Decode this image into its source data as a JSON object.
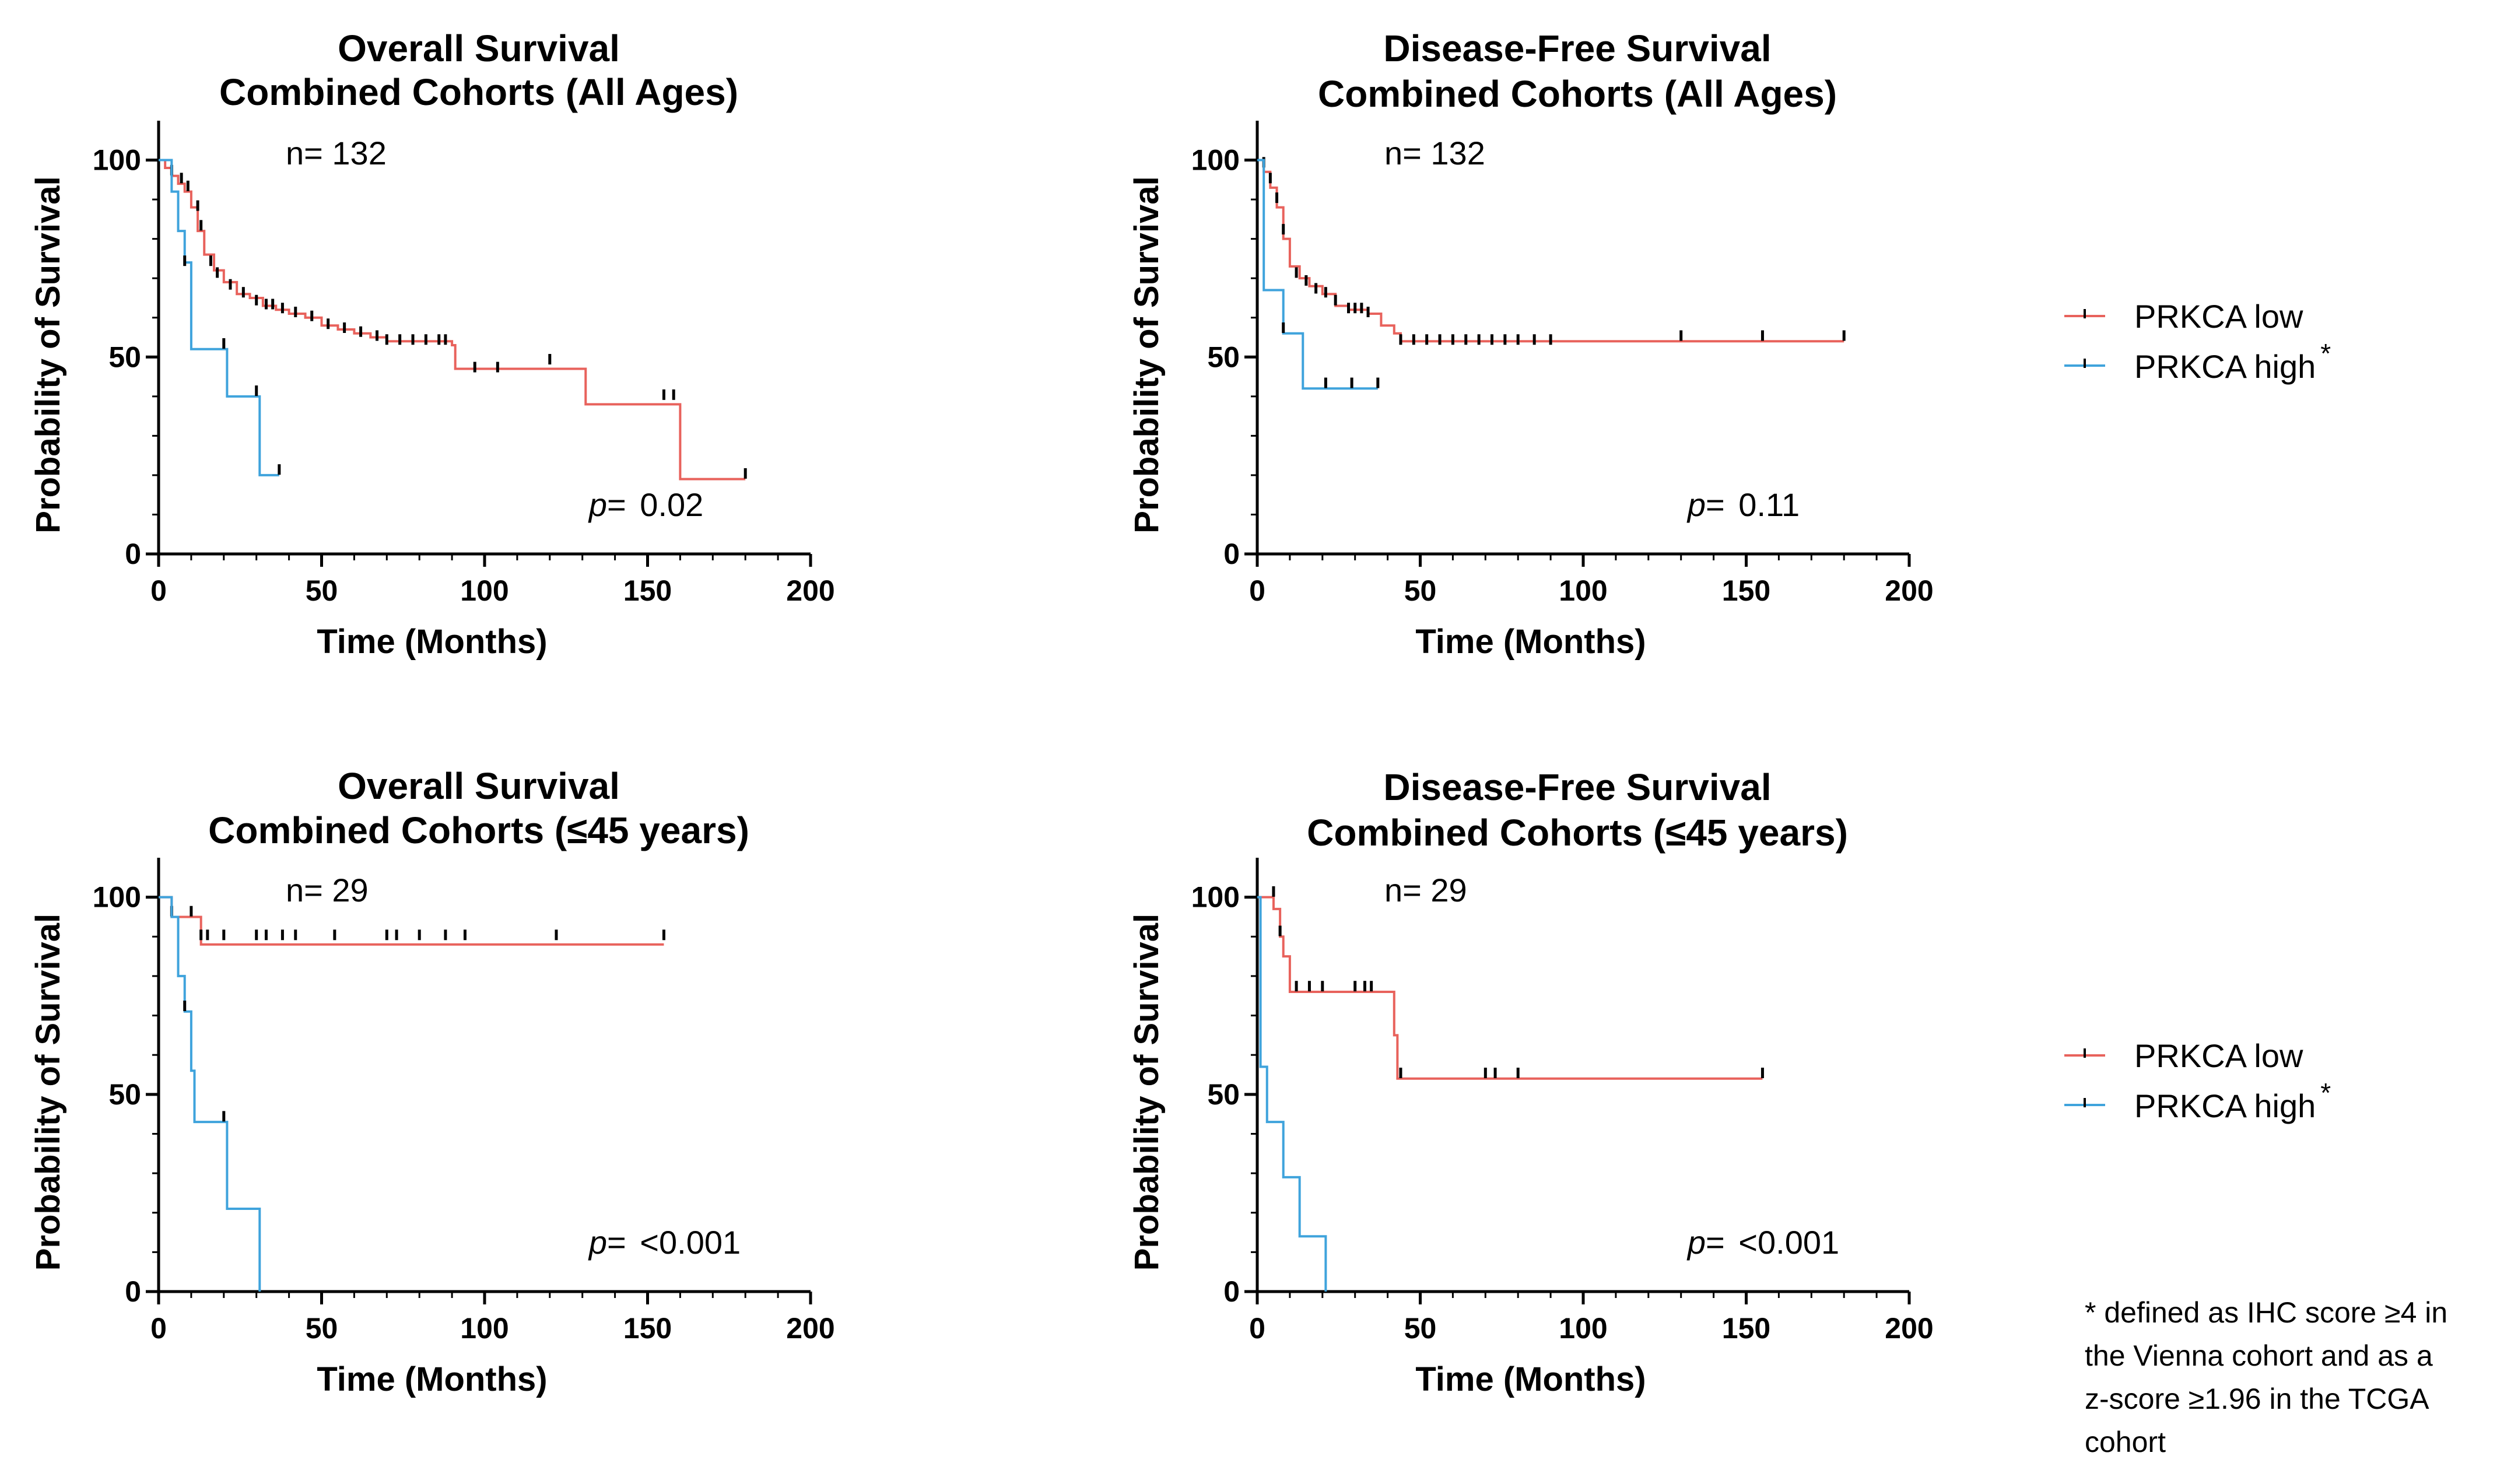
{
  "legend": {
    "low_label": "PRKCA low",
    "high_label": "PRKCA high",
    "high_marker": "*"
  },
  "colors": {
    "low": "#e8625c",
    "high": "#3fa3dc",
    "censor": "#000000"
  },
  "footnote": [
    "* defined as IHC score ≥4 in",
    "the Vienna cohort and as a",
    "z-score ≥1.96 in the TCGA",
    "cohort"
  ],
  "chart_data": [
    {
      "type": "line",
      "title": "Overall Survival",
      "subtitle": "Combined Cohorts (All Ages)",
      "n_label": "n= 132",
      "p_prefix": "p=",
      "p_value": "0.02",
      "xlabel": "Time (Months)",
      "ylabel": "Probability of Survival",
      "xlim": [
        0,
        200
      ],
      "ylim": [
        0,
        110
      ],
      "xticks": [
        0,
        50,
        100,
        150,
        200
      ],
      "yticks": [
        0,
        50,
        100
      ],
      "series": [
        {
          "name": "PRKCA low",
          "steps": [
            [
              0,
              100
            ],
            [
              2,
              98
            ],
            [
              4,
              96
            ],
            [
              6,
              94
            ],
            [
              8,
              92
            ],
            [
              10,
              88
            ],
            [
              12,
              82
            ],
            [
              14,
              76
            ],
            [
              17,
              72
            ],
            [
              20,
              69
            ],
            [
              24,
              66
            ],
            [
              28,
              65
            ],
            [
              32,
              63
            ],
            [
              36,
              62
            ],
            [
              40,
              61
            ],
            [
              45,
              60
            ],
            [
              50,
              58
            ],
            [
              55,
              57
            ],
            [
              60,
              56
            ],
            [
              65,
              55
            ],
            [
              70,
              54
            ],
            [
              90,
              53
            ],
            [
              91,
              47
            ],
            [
              130,
              47
            ],
            [
              131,
              38
            ],
            [
              159,
              38
            ],
            [
              160,
              19
            ],
            [
              180,
              19
            ]
          ],
          "censors": [
            [
              4,
              97
            ],
            [
              7,
              95
            ],
            [
              9,
              93
            ],
            [
              12,
              88
            ],
            [
              13,
              83
            ],
            [
              16,
              74
            ],
            [
              18,
              71
            ],
            [
              22,
              68
            ],
            [
              26,
              66
            ],
            [
              30,
              64
            ],
            [
              33,
              63
            ],
            [
              35,
              63
            ],
            [
              38,
              62
            ],
            [
              42,
              61
            ],
            [
              47,
              60
            ],
            [
              52,
              58
            ],
            [
              57,
              57
            ],
            [
              62,
              56
            ],
            [
              67,
              55
            ],
            [
              70,
              54
            ],
            [
              74,
              54
            ],
            [
              78,
              54
            ],
            [
              82,
              54
            ],
            [
              86,
              54
            ],
            [
              88,
              54
            ],
            [
              97,
              47
            ],
            [
              104,
              47
            ],
            [
              120,
              49
            ],
            [
              155,
              40
            ],
            [
              158,
              40
            ],
            [
              180,
              20
            ]
          ]
        },
        {
          "name": "PRKCA high",
          "steps": [
            [
              0,
              100
            ],
            [
              4,
              92
            ],
            [
              6,
              82
            ],
            [
              8,
              74
            ],
            [
              10,
              52
            ],
            [
              20,
              52
            ],
            [
              21,
              40
            ],
            [
              30,
              40
            ],
            [
              31,
              20
            ],
            [
              37,
              20
            ]
          ],
          "censors": [
            [
              8,
              74
            ],
            [
              20,
              53
            ],
            [
              30,
              41
            ],
            [
              37,
              21
            ]
          ]
        }
      ]
    },
    {
      "type": "line",
      "title": "Disease-Free Survival",
      "subtitle": "Combined Cohorts (All Ages)",
      "n_label": "n= 132",
      "p_prefix": "p=",
      "p_value": "0.11",
      "xlabel": "Time (Months)",
      "ylabel": "Probability of Survival",
      "xlim": [
        0,
        200
      ],
      "ylim": [
        0,
        110
      ],
      "xticks": [
        0,
        50,
        100,
        150,
        200
      ],
      "yticks": [
        0,
        50,
        100
      ],
      "series": [
        {
          "name": "PRKCA low",
          "steps": [
            [
              0,
              100
            ],
            [
              2,
              97
            ],
            [
              4,
              93
            ],
            [
              6,
              88
            ],
            [
              8,
              80
            ],
            [
              10,
              73
            ],
            [
              13,
              70
            ],
            [
              16,
              68
            ],
            [
              20,
              66
            ],
            [
              24,
              63
            ],
            [
              28,
              62
            ],
            [
              34,
              61
            ],
            [
              38,
              58
            ],
            [
              42,
              56
            ],
            [
              44,
              54
            ],
            [
              180,
              54
            ]
          ],
          "censors": [
            [
              2,
              99
            ],
            [
              4,
              95
            ],
            [
              6,
              90
            ],
            [
              8,
              82
            ],
            [
              12,
              71
            ],
            [
              15,
              69
            ],
            [
              18,
              67
            ],
            [
              21,
              66
            ],
            [
              24,
              64
            ],
            [
              28,
              62
            ],
            [
              30,
              62
            ],
            [
              32,
              62
            ],
            [
              34,
              61
            ],
            [
              44,
              54
            ],
            [
              48,
              54
            ],
            [
              52,
              54
            ],
            [
              56,
              54
            ],
            [
              60,
              54
            ],
            [
              64,
              54
            ],
            [
              68,
              54
            ],
            [
              72,
              54
            ],
            [
              76,
              54
            ],
            [
              80,
              54
            ],
            [
              85,
              54
            ],
            [
              90,
              54
            ],
            [
              130,
              55
            ],
            [
              155,
              55
            ],
            [
              180,
              55
            ]
          ]
        },
        {
          "name": "PRKCA high",
          "steps": [
            [
              0,
              100
            ],
            [
              2,
              67
            ],
            [
              7,
              67
            ],
            [
              8,
              56
            ],
            [
              13,
              56
            ],
            [
              14,
              42
            ],
            [
              37,
              42
            ]
          ],
          "censors": [
            [
              8,
              57
            ],
            [
              21,
              43
            ],
            [
              29,
              43
            ],
            [
              37,
              43
            ]
          ]
        }
      ]
    },
    {
      "type": "line",
      "title": "Overall Survival",
      "subtitle": "Combined Cohorts (≤45 years)",
      "n_label": "n= 29",
      "p_prefix": "p=",
      "p_value": "<0.001",
      "xlabel": "Time (Months)",
      "ylabel": "Probability of Survival",
      "xlim": [
        0,
        200
      ],
      "ylim": [
        0,
        110
      ],
      "xticks": [
        0,
        50,
        100,
        150,
        200
      ],
      "yticks": [
        0,
        50,
        100
      ],
      "series": [
        {
          "name": "PRKCA low",
          "steps": [
            [
              0,
              100
            ],
            [
              4,
              95
            ],
            [
              12,
              95
            ],
            [
              13,
              88
            ],
            [
              155,
              88
            ]
          ],
          "censors": [
            [
              4,
              96
            ],
            [
              10,
              96
            ],
            [
              13,
              90
            ],
            [
              15,
              90
            ],
            [
              20,
              90
            ],
            [
              30,
              90
            ],
            [
              33,
              90
            ],
            [
              38,
              90
            ],
            [
              42,
              90
            ],
            [
              54,
              90
            ],
            [
              70,
              90
            ],
            [
              73,
              90
            ],
            [
              80,
              90
            ],
            [
              88,
              90
            ],
            [
              94,
              90
            ],
            [
              122,
              90
            ],
            [
              155,
              90
            ]
          ]
        },
        {
          "name": "PRKCA high",
          "steps": [
            [
              0,
              100
            ],
            [
              4,
              95
            ],
            [
              6,
              80
            ],
            [
              8,
              71
            ],
            [
              10,
              56
            ],
            [
              11,
              43
            ],
            [
              20,
              43
            ],
            [
              21,
              21
            ],
            [
              30,
              21
            ],
            [
              31,
              0
            ]
          ],
          "censors": [
            [
              8,
              72
            ],
            [
              20,
              44
            ]
          ]
        }
      ]
    },
    {
      "type": "line",
      "title": "Disease-Free Survival",
      "subtitle": "Combined Cohorts (≤45 years)",
      "n_label": "n= 29",
      "p_prefix": "p=",
      "p_value": "<0.001",
      "xlabel": "Time (Months)",
      "ylabel": "Probability of Survival",
      "xlim": [
        0,
        200
      ],
      "ylim": [
        0,
        110
      ],
      "xticks": [
        0,
        50,
        100,
        150,
        200
      ],
      "yticks": [
        0,
        50,
        100
      ],
      "series": [
        {
          "name": "PRKCA low",
          "steps": [
            [
              0,
              100
            ],
            [
              5,
              97
            ],
            [
              7,
              90
            ],
            [
              8,
              85
            ],
            [
              10,
              76
            ],
            [
              40,
              76
            ],
            [
              42,
              65
            ],
            [
              43,
              54
            ],
            [
              155,
              54
            ]
          ],
          "censors": [
            [
              5,
              101
            ],
            [
              7,
              91
            ],
            [
              12,
              77
            ],
            [
              16,
              77
            ],
            [
              20,
              77
            ],
            [
              30,
              77
            ],
            [
              33,
              77
            ],
            [
              35,
              77
            ],
            [
              44,
              55
            ],
            [
              70,
              55
            ],
            [
              73,
              55
            ],
            [
              80,
              55
            ],
            [
              155,
              55
            ]
          ]
        },
        {
          "name": "PRKCA high",
          "steps": [
            [
              0,
              100
            ],
            [
              1,
              57
            ],
            [
              3,
              43
            ],
            [
              7,
              43
            ],
            [
              8,
              29
            ],
            [
              12,
              29
            ],
            [
              13,
              14
            ],
            [
              20,
              14
            ],
            [
              21,
              0
            ]
          ],
          "censors": []
        }
      ]
    }
  ]
}
